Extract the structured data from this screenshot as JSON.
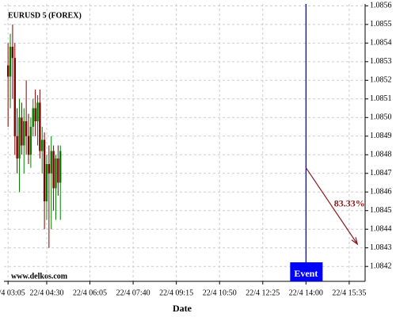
{
  "chart_data": {
    "type": "candlestick",
    "title": "EURUSD 5 (FOREX)",
    "watermark": "www.delkos.com",
    "x_label": "Date",
    "x": [
      "22/4 03:05",
      "22/4 03:10",
      "22/4 03:15",
      "22/4 03:20",
      "22/4 03:25",
      "22/4 03:30",
      "22/4 03:35",
      "22/4 03:40",
      "22/4 03:45",
      "22/4 03:50",
      "22/4 03:55",
      "22/4 04:00",
      "22/4 04:05",
      "22/4 04:10",
      "22/4 04:15",
      "22/4 04:20",
      "22/4 04:25",
      "22/4 04:30",
      "22/4 04:35",
      "22/4 04:40",
      "22/4 04:45",
      "22/4 04:50",
      "22/4 04:55",
      "22/4 05:00"
    ],
    "open": [
      1.08528,
      1.08522,
      1.08538,
      1.08532,
      1.0849,
      1.08478,
      1.085,
      1.08485,
      1.08498,
      1.0849,
      1.0848,
      1.08495,
      1.08505,
      1.08498,
      1.08508,
      1.08482,
      1.08488,
      1.08455,
      1.08475,
      1.0847,
      1.08482,
      1.08462,
      1.08478,
      1.08465
    ],
    "high": [
      1.0854,
      1.08545,
      1.0855,
      1.0854,
      1.08505,
      1.0851,
      1.08508,
      1.08505,
      1.0852,
      1.08502,
      1.085,
      1.0851,
      1.08515,
      1.08512,
      1.08515,
      1.08495,
      1.08492,
      1.0848,
      1.08485,
      1.0849,
      1.08485,
      1.0848,
      1.08485,
      1.08485
    ],
    "low": [
      1.08495,
      1.08505,
      1.0851,
      1.0848,
      1.0847,
      1.0846,
      1.0848,
      1.0847,
      1.0848,
      1.08475,
      1.08473,
      1.0849,
      1.0849,
      1.08485,
      1.08478,
      1.0847,
      1.0844,
      1.08445,
      1.0843,
      1.0844,
      1.0845,
      1.08445,
      1.08458,
      1.08445
    ],
    "close": [
      1.08522,
      1.08538,
      1.08532,
      1.0849,
      1.08478,
      1.085,
      1.08485,
      1.08498,
      1.0849,
      1.0848,
      1.08495,
      1.08505,
      1.08498,
      1.08508,
      1.08482,
      1.08488,
      1.08455,
      1.08475,
      1.0847,
      1.08482,
      1.08462,
      1.08478,
      1.08465,
      1.08482
    ],
    "up_color": "#008000",
    "down_color": "#800000",
    "xlim": [
      "22/4 02:56",
      "22/4 16:10"
    ],
    "xticks": [
      "22/4 03:05",
      "22/4 04:30",
      "22/4 06:05",
      "22/4 07:40",
      "22/4 09:15",
      "22/4 10:50",
      "22/4 12:25",
      "22/4 14:00",
      "22/4 15:35"
    ],
    "ylim": [
      1.08412,
      1.08561
    ],
    "yticks": [
      {
        "value": 1.0842,
        "label": "1.0842"
      },
      {
        "value": 1.0843,
        "label": "1.0843"
      },
      {
        "value": 1.0844,
        "label": "1.0844"
      },
      {
        "value": 1.0845,
        "label": "1.0845"
      },
      {
        "value": 1.0846,
        "label": "1.0846"
      },
      {
        "value": 1.0847,
        "label": "1.0847"
      },
      {
        "value": 1.0848,
        "label": "1.0848"
      },
      {
        "value": 1.0849,
        "label": "1.0849"
      },
      {
        "value": 1.085,
        "label": "1.0850"
      },
      {
        "value": 1.0851,
        "label": "1.0851"
      },
      {
        "value": 1.0852,
        "label": "1.0852"
      },
      {
        "value": 1.0853,
        "label": "1.0853"
      },
      {
        "value": 1.0854,
        "label": "1.0854"
      },
      {
        "value": 1.0855,
        "label": "1.0855"
      },
      {
        "value": 1.0856,
        "label": "1.0856"
      }
    ],
    "grid": true,
    "event": {
      "x": "22/4 14:00",
      "label": "Event",
      "color": "#0000ff"
    },
    "forecast": {
      "x": [
        "22/4 14:00",
        "22/4 15:53"
      ],
      "y": [
        1.08473,
        1.08432
      ],
      "label": "83.33%",
      "color": "#8b1a1a"
    }
  }
}
